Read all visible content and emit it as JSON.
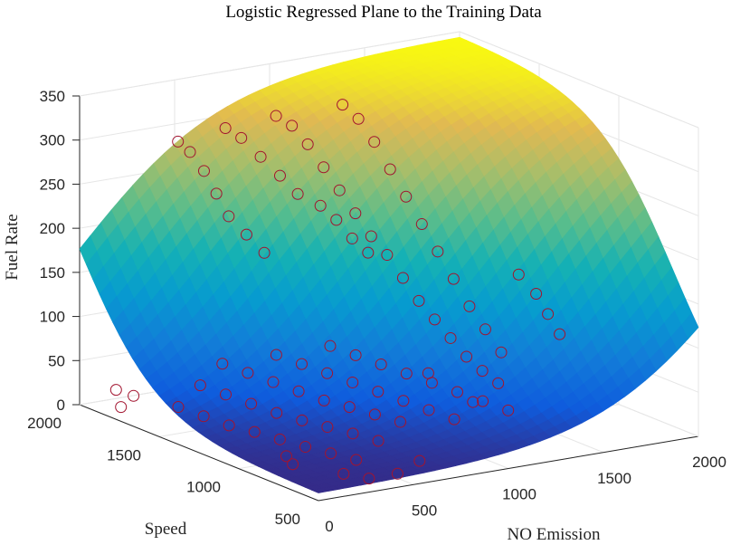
{
  "chart_data": {
    "type": "surface3d",
    "title": "Logistic Regressed Plane to the Training Data",
    "xlabel": "NO Emission",
    "ylabel": "Speed",
    "zlabel": "Fuel Rate",
    "xlim": [
      0,
      2000
    ],
    "ylim": [
      500,
      2000
    ],
    "zlim": [
      0,
      350
    ],
    "x_ticks": [
      0,
      500,
      1000,
      1500,
      2000
    ],
    "y_ticks": [
      500,
      1000,
      1500,
      2000
    ],
    "z_ticks": [
      0,
      50,
      100,
      150,
      200,
      250,
      300,
      350
    ],
    "x_tick_labels": [
      "0",
      "500",
      "1000",
      "1500",
      "2000"
    ],
    "y_tick_labels": [
      "500",
      "1000",
      "1500",
      "2000"
    ],
    "z_tick_labels": [
      "0",
      "50",
      "100",
      "150",
      "200",
      "250",
      "300",
      "350"
    ],
    "grid": true,
    "colormap": "parula",
    "marker_color": "#a2142f",
    "surface": {
      "model": "logistic",
      "description_values": {
        "z_min": 8,
        "z_max": 345,
        "x_range": [
          0,
          2000
        ],
        "y_range": [
          500,
          2000
        ]
      }
    },
    "scatter": [
      {
        "x": 350,
        "y": 1800,
        "z": 300
      },
      {
        "x": 380,
        "y": 1760,
        "z": 290
      },
      {
        "x": 420,
        "y": 1720,
        "z": 270
      },
      {
        "x": 460,
        "y": 1690,
        "z": 245
      },
      {
        "x": 500,
        "y": 1660,
        "z": 220
      },
      {
        "x": 560,
        "y": 1620,
        "z": 200
      },
      {
        "x": 620,
        "y": 1580,
        "z": 180
      },
      {
        "x": 650,
        "y": 1860,
        "z": 300
      },
      {
        "x": 700,
        "y": 1820,
        "z": 290
      },
      {
        "x": 760,
        "y": 1770,
        "z": 270
      },
      {
        "x": 820,
        "y": 1720,
        "z": 250
      },
      {
        "x": 880,
        "y": 1680,
        "z": 230
      },
      {
        "x": 950,
        "y": 1900,
        "z": 300
      },
      {
        "x": 1000,
        "y": 1860,
        "z": 290
      },
      {
        "x": 1050,
        "y": 1820,
        "z": 270
      },
      {
        "x": 1100,
        "y": 1780,
        "z": 245
      },
      {
        "x": 1150,
        "y": 1740,
        "z": 220
      },
      {
        "x": 1200,
        "y": 1700,
        "z": 195
      },
      {
        "x": 1250,
        "y": 1660,
        "z": 170
      },
      {
        "x": 1300,
        "y": 1620,
        "z": 150
      },
      {
        "x": 1350,
        "y": 1580,
        "z": 125
      },
      {
        "x": 1400,
        "y": 1540,
        "z": 100
      },
      {
        "x": 1450,
        "y": 1500,
        "z": 80
      },
      {
        "x": 1500,
        "y": 1460,
        "z": 60
      },
      {
        "x": 1550,
        "y": 1420,
        "z": 40
      },
      {
        "x": 1600,
        "y": 1380,
        "z": 25
      },
      {
        "x": 1650,
        "y": 1340,
        "z": 12
      },
      {
        "x": 1300,
        "y": 1900,
        "z": 300
      },
      {
        "x": 1350,
        "y": 1860,
        "z": 285
      },
      {
        "x": 1400,
        "y": 1820,
        "z": 260
      },
      {
        "x": 1450,
        "y": 1780,
        "z": 230
      },
      {
        "x": 1500,
        "y": 1740,
        "z": 200
      },
      {
        "x": 1550,
        "y": 1700,
        "z": 170
      },
      {
        "x": 1600,
        "y": 1660,
        "z": 140
      },
      {
        "x": 1650,
        "y": 1620,
        "z": 110
      },
      {
        "x": 1700,
        "y": 1580,
        "z": 80
      },
      {
        "x": 1750,
        "y": 1540,
        "z": 55
      },
      {
        "x": 1800,
        "y": 1500,
        "z": 30
      },
      {
        "x": 1850,
        "y": 1450,
        "z": 120
      },
      {
        "x": 1900,
        "y": 1400,
        "z": 100
      },
      {
        "x": 1920,
        "y": 1350,
        "z": 80
      },
      {
        "x": 1940,
        "y": 1300,
        "z": 60
      },
      {
        "x": 100,
        "y": 1500,
        "z": 30
      },
      {
        "x": 150,
        "y": 1400,
        "z": 25
      },
      {
        "x": 200,
        "y": 1300,
        "z": 20
      },
      {
        "x": 250,
        "y": 1200,
        "z": 18
      },
      {
        "x": 300,
        "y": 1100,
        "z": 15
      },
      {
        "x": 350,
        "y": 1000,
        "z": 12
      },
      {
        "x": 400,
        "y": 900,
        "z": 10
      },
      {
        "x": 450,
        "y": 800,
        "z": 8
      },
      {
        "x": 300,
        "y": 1600,
        "z": 40
      },
      {
        "x": 350,
        "y": 1500,
        "z": 35
      },
      {
        "x": 400,
        "y": 1400,
        "z": 30
      },
      {
        "x": 450,
        "y": 1300,
        "z": 25
      },
      {
        "x": 500,
        "y": 1200,
        "z": 22
      },
      {
        "x": 550,
        "y": 1100,
        "z": 20
      },
      {
        "x": 600,
        "y": 1000,
        "z": 18
      },
      {
        "x": 650,
        "y": 900,
        "z": 15
      },
      {
        "x": 500,
        "y": 1700,
        "z": 50
      },
      {
        "x": 550,
        "y": 1600,
        "z": 45
      },
      {
        "x": 600,
        "y": 1500,
        "z": 40
      },
      {
        "x": 650,
        "y": 1400,
        "z": 35
      },
      {
        "x": 700,
        "y": 1300,
        "z": 30
      },
      {
        "x": 750,
        "y": 1200,
        "z": 28
      },
      {
        "x": 800,
        "y": 1100,
        "z": 25
      },
      {
        "x": 850,
        "y": 1000,
        "z": 22
      },
      {
        "x": 700,
        "y": 1600,
        "z": 60
      },
      {
        "x": 750,
        "y": 1500,
        "z": 55
      },
      {
        "x": 800,
        "y": 1400,
        "z": 50
      },
      {
        "x": 850,
        "y": 1300,
        "z": 45
      },
      {
        "x": 900,
        "y": 1200,
        "z": 40
      },
      {
        "x": 950,
        "y": 1100,
        "z": 35
      },
      {
        "x": 1000,
        "y": 1000,
        "z": 30
      },
      {
        "x": 1050,
        "y": 900,
        "z": 25
      },
      {
        "x": 900,
        "y": 1500,
        "z": 70
      },
      {
        "x": 950,
        "y": 1400,
        "z": 65
      },
      {
        "x": 1000,
        "y": 1300,
        "z": 60
      },
      {
        "x": 1050,
        "y": 1200,
        "z": 55
      },
      {
        "x": 1100,
        "y": 1100,
        "z": 50
      },
      {
        "x": 1150,
        "y": 1000,
        "z": 45
      },
      {
        "x": 1200,
        "y": 900,
        "z": 40
      },
      {
        "x": 1250,
        "y": 800,
        "z": 35
      },
      {
        "x": 200,
        "y": 1900,
        "z": 10
      },
      {
        "x": 150,
        "y": 1950,
        "z": 15
      },
      {
        "x": 50,
        "y": 1800,
        "z": 10
      },
      {
        "x": 250,
        "y": 1000,
        "z": 5
      },
      {
        "x": 200,
        "y": 900,
        "z": 5
      },
      {
        "x": 300,
        "y": 700,
        "z": 5
      },
      {
        "x": 350,
        "y": 600,
        "z": 5
      },
      {
        "x": 500,
        "y": 600,
        "z": 5
      },
      {
        "x": 700,
        "y": 700,
        "z": 5
      },
      {
        "x": 1100,
        "y": 1800,
        "z": 200
      },
      {
        "x": 1150,
        "y": 1760,
        "z": 185
      },
      {
        "x": 1200,
        "y": 1720,
        "z": 165
      },
      {
        "x": 1250,
        "y": 1680,
        "z": 150
      },
      {
        "x": 1500,
        "y": 1600,
        "z": 10
      },
      {
        "x": 1400,
        "y": 1200,
        "z": 10
      }
    ]
  }
}
